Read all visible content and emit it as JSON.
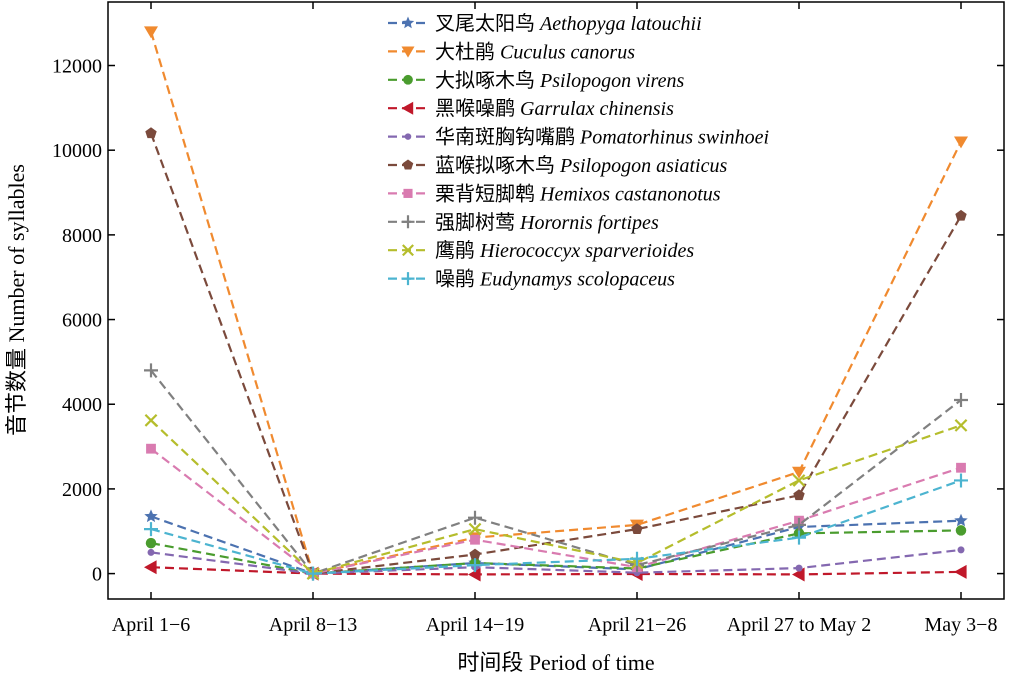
{
  "chart_data": {
    "type": "line",
    "xlabel": "时间段 Period of time",
    "ylabel": "音节数量 Number of syllables",
    "categories": [
      "April 1−6",
      "April 8−13",
      "April 14−19",
      "April 21−26",
      "April 27 to May 2",
      "May 3−8"
    ],
    "ylim": [
      -600,
      13500
    ],
    "yticks": [
      0,
      2000,
      4000,
      6000,
      8000,
      10000,
      12000
    ],
    "grid": false,
    "legend_position": "top-center",
    "series": [
      {
        "cn": "叉尾太阳鸟",
        "latin": "Aethopyga latouchii",
        "color": "#4c72b0",
        "marker": "star",
        "values": [
          1350,
          0,
          250,
          100,
          1100,
          1250
        ]
      },
      {
        "cn": "大杜鹃",
        "latin": "Cuculus canorus",
        "color": "#f08a2f",
        "marker": "triangle-down",
        "values": [
          12800,
          0,
          850,
          1150,
          2400,
          10200
        ]
      },
      {
        "cn": "大拟啄木鸟",
        "latin": "Psilopogon virens",
        "color": "#4a9c2e",
        "marker": "circle",
        "values": [
          720,
          0,
          250,
          120,
          950,
          1020
        ]
      },
      {
        "cn": "黑喉噪鹛",
        "latin": "Garrulax chinensis",
        "color": "#c0182a",
        "marker": "triangle-left",
        "values": [
          150,
          0,
          -20,
          -10,
          -20,
          40
        ]
      },
      {
        "cn": "华南斑胸钩嘴鹛",
        "latin": "Pomatorhinus swinhoei",
        "color": "#8468b0",
        "marker": "small-circle",
        "values": [
          500,
          0,
          150,
          20,
          130,
          560
        ]
      },
      {
        "cn": "蓝喉拟啄木鸟",
        "latin": "Psilopogon asiaticus",
        "color": "#7b4a3c",
        "marker": "pentagon",
        "values": [
          10400,
          0,
          450,
          1050,
          1850,
          8450
        ]
      },
      {
        "cn": "栗背短脚鹎",
        "latin": "Hemixos castanonotus",
        "color": "#d97bb0",
        "marker": "square",
        "values": [
          2950,
          0,
          800,
          150,
          1250,
          2500
        ]
      },
      {
        "cn": "强脚树莺",
        "latin": "Horornis fortipes",
        "color": "#808080",
        "marker": "plus",
        "values": [
          4800,
          0,
          1320,
          200,
          1150,
          4100
        ]
      },
      {
        "cn": "鹰鹃",
        "latin": "Hierococcyx sparverioides",
        "color": "#b5bd2c",
        "marker": "x",
        "values": [
          3620,
          0,
          1050,
          250,
          2200,
          3500
        ]
      },
      {
        "cn": "噪鹃",
        "latin": "Eudynamys scolopaceus",
        "color": "#4cb4d0",
        "marker": "plus",
        "values": [
          1050,
          0,
          200,
          350,
          850,
          2200
        ]
      }
    ]
  }
}
